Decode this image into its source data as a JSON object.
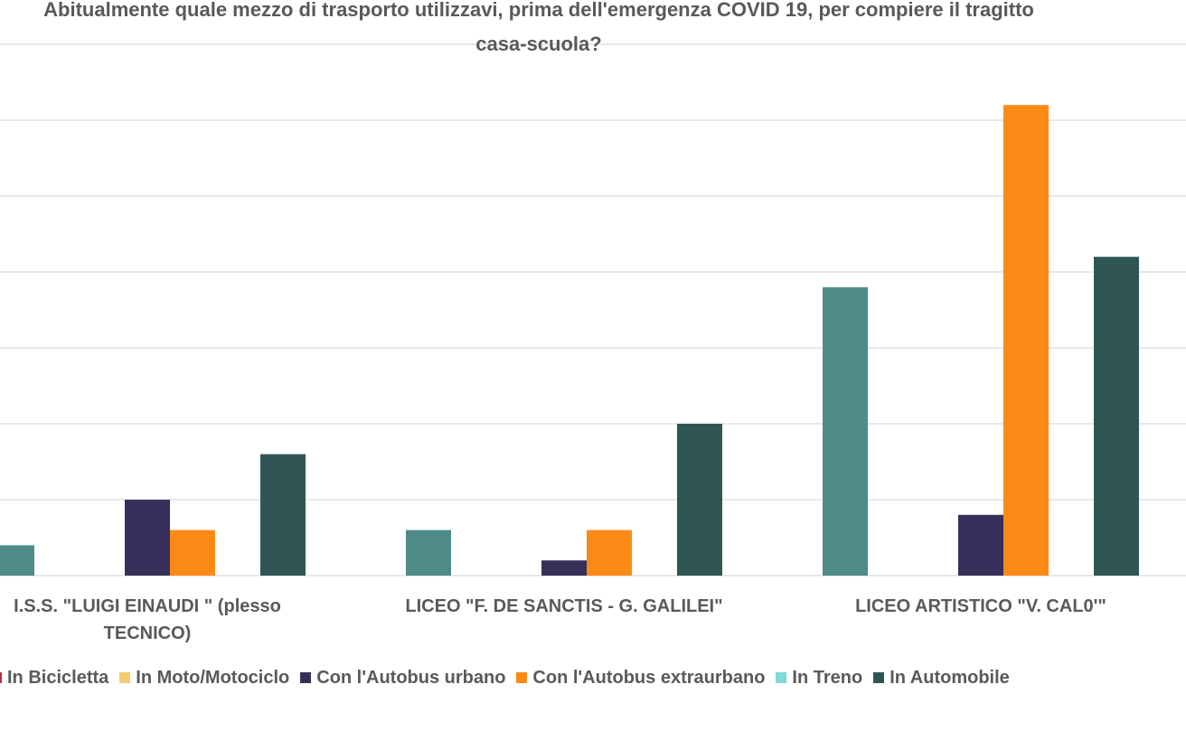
{
  "chart_data": {
    "type": "bar",
    "title": "Abitualmente quale mezzo di trasporto utilizzavi, prima dell'emergenza COVID 19, per compiere il tragitto casa-scuola?",
    "categories": [
      "I.S.S. \"LUIGI EINAUDI \" (plesso TECNICO)",
      "LICEO \"F. DE SANCTIS - G. GALILEI\"",
      "LICEO ARTISTICO \"V. CAL0'\""
    ],
    "series": [
      {
        "color": "#4f8b89",
        "values": [
          2,
          3,
          19
        ]
      },
      {
        "name": "In Bicicletta",
        "color": "#b5303a",
        "values": [
          0,
          0,
          0
        ]
      },
      {
        "name": "In Moto/Motociclo",
        "color": "#f2cc6e",
        "values": [
          0,
          0,
          0
        ]
      },
      {
        "name": "Con l'Autobus urbano",
        "color": "#372f5a",
        "values": [
          5,
          1,
          4
        ]
      },
      {
        "name": "Con l'Autobus extraurbano",
        "color": "#fb8a16",
        "values": [
          3,
          3,
          31
        ]
      },
      {
        "name": "In Treno",
        "color": "#7ed9d9",
        "values": [
          0,
          0,
          0
        ]
      },
      {
        "name": "In Automobile",
        "color": "#2f5654",
        "values": [
          8,
          10,
          21
        ]
      }
    ],
    "ylim": [
      0,
      35
    ],
    "yticks": [
      0,
      5,
      10,
      15,
      20,
      25,
      30,
      35
    ],
    "grid": true
  }
}
